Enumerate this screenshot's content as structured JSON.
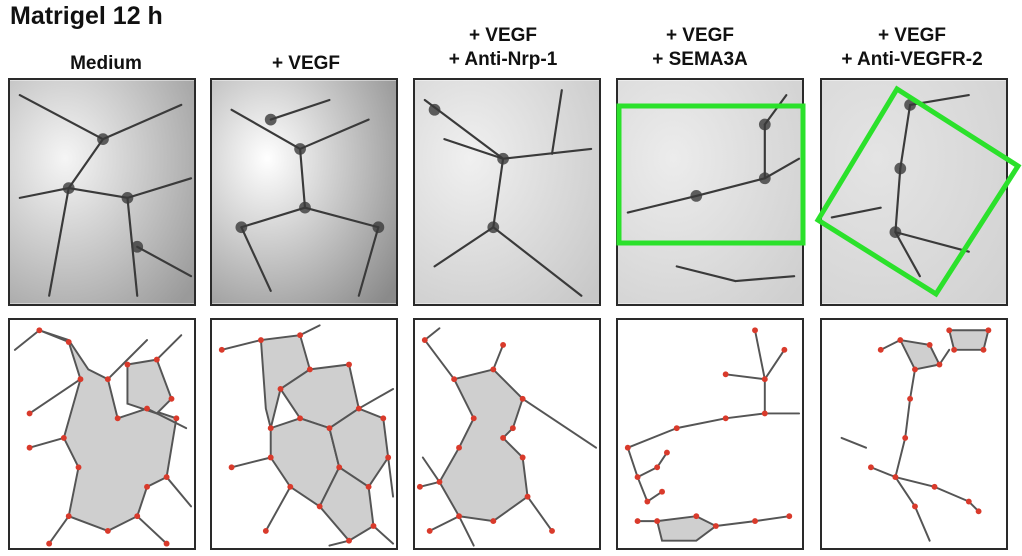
{
  "title": "Matrigel 12 h",
  "columns": [
    {
      "id": "medium",
      "label_lines": [
        "Medium"
      ]
    },
    {
      "id": "vegf",
      "label_lines": [
        "+ VEGF"
      ]
    },
    {
      "id": "antinrp",
      "label_lines": [
        "+ VEGF",
        "+ Anti-Nrp-1"
      ]
    },
    {
      "id": "sema",
      "label_lines": [
        "+ VEGF",
        "+ SEMA3A"
      ]
    },
    {
      "id": "antivegfr",
      "label_lines": [
        "+ VEGF",
        "+ Anti-VEGFR-2"
      ]
    }
  ],
  "colors": {
    "network_line": "#555555",
    "node": "#d93a2b",
    "enclosed_fill": "#cfcfcf",
    "highlight_box": "#2be12b",
    "micrograph_bg": "#f2f2f2",
    "cell_dark": "#3a3a3a"
  },
  "highlight_boxes": [
    {
      "column": "sema",
      "shape": "rectangle"
    },
    {
      "column": "antivegfr",
      "shape": "rotated-square"
    }
  ]
}
